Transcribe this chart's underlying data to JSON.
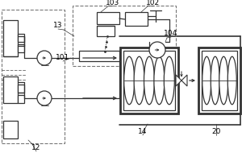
{
  "bg": "white",
  "lc": "#333333",
  "dc": "#777777",
  "lw": 0.9,
  "fs": 6.5,
  "fig_w": 3.0,
  "fig_h": 2.0,
  "dpi": 100
}
